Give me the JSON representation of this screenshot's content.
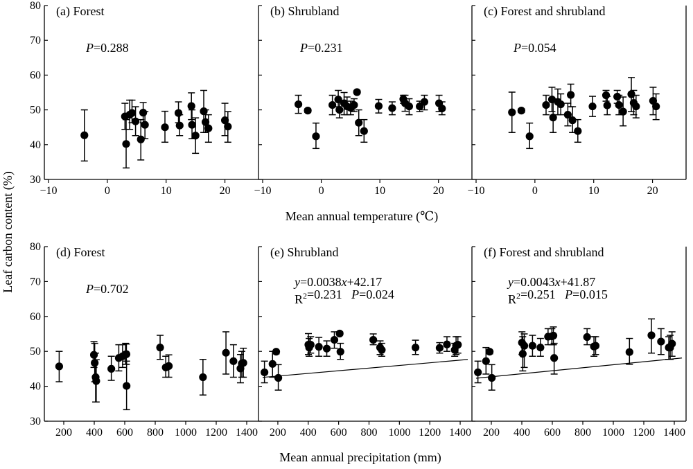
{
  "figure": {
    "ylabel": "Leaf carbon content (%)",
    "row_xlabels": [
      "Mean annual temperature (℃)",
      "Mean annual precipitation (mm)"
    ]
  },
  "chart_data": [
    {
      "type": "scatter",
      "panel": "(a) Forest",
      "row": 0,
      "col": 0,
      "stat_lines": [
        [
          {
            "t": "P",
            "i": true
          },
          {
            "t": "=0.288"
          }
        ]
      ],
      "xlim": [
        -10,
        25
      ],
      "ylim": [
        30,
        80
      ],
      "xticks": [
        -10,
        0,
        10,
        20
      ],
      "yticks": [
        30,
        40,
        50,
        60,
        70,
        80
      ],
      "show_xticklabels": true,
      "show_yticklabels": true,
      "fit": null,
      "points": [
        {
          "x": -3.9,
          "y": 42.7,
          "lo": 35.3,
          "hi": 50.0
        },
        {
          "x": 3.0,
          "y": 48.1,
          "lo": 44.4,
          "hi": 51.9
        },
        {
          "x": 3.2,
          "y": 40.2,
          "lo": 33.3,
          "hi": 47.2
        },
        {
          "x": 3.8,
          "y": 48.6,
          "lo": 44.4,
          "hi": 52.8
        },
        {
          "x": 4.2,
          "y": 49.1,
          "lo": 46.3,
          "hi": 52.8
        },
        {
          "x": 4.8,
          "y": 46.7,
          "lo": 42.6,
          "hi": 50.9
        },
        {
          "x": 5.7,
          "y": 41.5,
          "lo": 35.6,
          "hi": 47.2
        },
        {
          "x": 6.1,
          "y": 49.2,
          "lo": 46.3,
          "hi": 52.1
        },
        {
          "x": 6.4,
          "y": 45.7,
          "lo": 41.7,
          "hi": 49.5
        },
        {
          "x": 9.8,
          "y": 45.0,
          "lo": 40.7,
          "hi": 49.6
        },
        {
          "x": 12.1,
          "y": 49.1,
          "lo": 46.3,
          "hi": 52.3
        },
        {
          "x": 12.3,
          "y": 45.5,
          "lo": 42.6,
          "hi": 48.6
        },
        {
          "x": 14.3,
          "y": 51.1,
          "lo": 47.2,
          "hi": 54.9
        },
        {
          "x": 14.4,
          "y": 45.7,
          "lo": 41.7,
          "hi": 50.0
        },
        {
          "x": 15.0,
          "y": 42.6,
          "lo": 37.5,
          "hi": 47.7
        },
        {
          "x": 16.4,
          "y": 49.6,
          "lo": 43.5,
          "hi": 55.6
        },
        {
          "x": 16.7,
          "y": 46.5,
          "lo": 43.5,
          "hi": 50.0
        },
        {
          "x": 17.2,
          "y": 44.7,
          "lo": 40.7,
          "hi": 48.6
        },
        {
          "x": 20.0,
          "y": 47.0,
          "lo": 42.6,
          "hi": 51.9
        },
        {
          "x": 20.5,
          "y": 45.2,
          "lo": 40.7,
          "hi": 49.5
        }
      ]
    },
    {
      "type": "scatter",
      "panel": "(b) Shrubland",
      "row": 0,
      "col": 1,
      "stat_lines": [
        [
          {
            "t": "P",
            "i": true
          },
          {
            "t": "=0.231"
          }
        ]
      ],
      "xlim": [
        -10,
        25
      ],
      "ylim": [
        30,
        80
      ],
      "xticks": [
        -10,
        0,
        10,
        20
      ],
      "yticks": [
        30,
        40,
        50,
        60,
        70,
        80
      ],
      "show_xticklabels": true,
      "show_yticklabels": false,
      "fit": null,
      "points": [
        {
          "x": -3.9,
          "y": 51.6,
          "lo": 49.0,
          "hi": 54.2
        },
        {
          "x": -2.3,
          "y": 49.8,
          "lo": 49.3,
          "hi": 50.3
        },
        {
          "x": -0.9,
          "y": 42.4,
          "lo": 38.9,
          "hi": 46.2
        },
        {
          "x": 1.9,
          "y": 51.4,
          "lo": 48.6,
          "hi": 54.2
        },
        {
          "x": 2.9,
          "y": 53.0,
          "lo": 50.9,
          "hi": 55.6
        },
        {
          "x": 3.1,
          "y": 50.0,
          "lo": 47.7,
          "hi": 52.5
        },
        {
          "x": 3.9,
          "y": 51.9,
          "lo": 48.6,
          "hi": 55.0
        },
        {
          "x": 4.4,
          "y": 51.0,
          "lo": 48.6,
          "hi": 53.7
        },
        {
          "x": 5.0,
          "y": 50.6,
          "lo": 48.6,
          "hi": 52.5
        },
        {
          "x": 5.6,
          "y": 51.4,
          "lo": 49.5,
          "hi": 53.2
        },
        {
          "x": 6.1,
          "y": 55.1,
          "lo": 54.7,
          "hi": 55.6
        },
        {
          "x": 6.4,
          "y": 46.3,
          "lo": 42.6,
          "hi": 50.0
        },
        {
          "x": 7.3,
          "y": 43.9,
          "lo": 40.7,
          "hi": 47.2
        },
        {
          "x": 9.8,
          "y": 51.1,
          "lo": 49.1,
          "hi": 53.0
        },
        {
          "x": 12.1,
          "y": 50.5,
          "lo": 48.6,
          "hi": 52.3
        },
        {
          "x": 14.0,
          "y": 53.1,
          "lo": 51.9,
          "hi": 54.2
        },
        {
          "x": 14.3,
          "y": 51.9,
          "lo": 49.6,
          "hi": 54.2
        },
        {
          "x": 15.0,
          "y": 51.0,
          "lo": 48.6,
          "hi": 53.2
        },
        {
          "x": 16.8,
          "y": 51.0,
          "lo": 49.5,
          "hi": 52.5
        },
        {
          "x": 17.6,
          "y": 52.3,
          "lo": 50.0,
          "hi": 54.2
        },
        {
          "x": 20.1,
          "y": 51.9,
          "lo": 49.5,
          "hi": 54.2
        },
        {
          "x": 20.6,
          "y": 50.4,
          "lo": 48.6,
          "hi": 52.3
        }
      ]
    },
    {
      "type": "scatter",
      "panel": "(c) Forest and shrubland",
      "row": 0,
      "col": 2,
      "stat_lines": [
        [
          {
            "t": "P",
            "i": true
          },
          {
            "t": "=0.054"
          }
        ]
      ],
      "xlim": [
        -10,
        25
      ],
      "ylim": [
        30,
        80
      ],
      "xticks": [
        -10,
        0,
        10,
        20
      ],
      "yticks": [
        30,
        40,
        50,
        60,
        70,
        80
      ],
      "show_xticklabels": true,
      "show_yticklabels": false,
      "fit": null,
      "points": [
        {
          "x": -3.9,
          "y": 49.3,
          "lo": 43.5,
          "hi": 55.1
        },
        {
          "x": -2.3,
          "y": 49.8,
          "lo": 49.3,
          "hi": 50.3
        },
        {
          "x": -0.9,
          "y": 42.4,
          "lo": 38.9,
          "hi": 46.2
        },
        {
          "x": 1.9,
          "y": 51.4,
          "lo": 48.6,
          "hi": 54.2
        },
        {
          "x": 2.9,
          "y": 53.0,
          "lo": 49.5,
          "hi": 56.5
        },
        {
          "x": 3.1,
          "y": 47.8,
          "lo": 43.5,
          "hi": 52.3
        },
        {
          "x": 3.9,
          "y": 52.3,
          "lo": 48.6,
          "hi": 56.0
        },
        {
          "x": 4.4,
          "y": 51.6,
          "lo": 48.6,
          "hi": 54.6
        },
        {
          "x": 5.6,
          "y": 48.6,
          "lo": 45.4,
          "hi": 51.9
        },
        {
          "x": 6.1,
          "y": 54.3,
          "lo": 50.9,
          "hi": 57.4
        },
        {
          "x": 6.4,
          "y": 47.0,
          "lo": 43.5,
          "hi": 50.9
        },
        {
          "x": 7.3,
          "y": 43.9,
          "lo": 40.7,
          "hi": 47.2
        },
        {
          "x": 9.8,
          "y": 51.0,
          "lo": 48.1,
          "hi": 53.9
        },
        {
          "x": 12.1,
          "y": 54.2,
          "lo": 52.5,
          "hi": 55.6
        },
        {
          "x": 12.3,
          "y": 51.3,
          "lo": 48.6,
          "hi": 53.9
        },
        {
          "x": 14.0,
          "y": 53.8,
          "lo": 51.9,
          "hi": 55.6
        },
        {
          "x": 14.3,
          "y": 51.4,
          "lo": 48.6,
          "hi": 54.2
        },
        {
          "x": 15.0,
          "y": 49.5,
          "lo": 45.4,
          "hi": 53.7
        },
        {
          "x": 16.4,
          "y": 54.5,
          "lo": 49.5,
          "hi": 59.3
        },
        {
          "x": 16.8,
          "y": 52.0,
          "lo": 48.6,
          "hi": 55.6
        },
        {
          "x": 17.2,
          "y": 51.0,
          "lo": 47.7,
          "hi": 54.2
        },
        {
          "x": 20.1,
          "y": 52.6,
          "lo": 48.6,
          "hi": 56.5
        },
        {
          "x": 20.6,
          "y": 51.0,
          "lo": 47.2,
          "hi": 54.6
        }
      ]
    },
    {
      "type": "scatter",
      "panel": "(d) Forest",
      "row": 1,
      "col": 0,
      "stat_lines": [
        [
          {
            "t": "P",
            "i": true
          },
          {
            "t": "=0.702"
          }
        ]
      ],
      "xlim": [
        100,
        1450
      ],
      "ylim": [
        30,
        80
      ],
      "xticks": [
        200,
        400,
        600,
        800,
        1000,
        1200,
        1400
      ],
      "yticks": [
        30,
        40,
        50,
        60,
        70,
        80
      ],
      "show_xticklabels": true,
      "show_yticklabels": true,
      "fit": null,
      "points": [
        {
          "x": 170,
          "y": 45.7,
          "lo": 41.3,
          "hi": 50.0
        },
        {
          "x": 398,
          "y": 49.0,
          "lo": 45.4,
          "hi": 52.8
        },
        {
          "x": 403,
          "y": 46.7,
          "lo": 41.3,
          "hi": 52.3
        },
        {
          "x": 409,
          "y": 42.6,
          "lo": 35.5,
          "hi": 49.5
        },
        {
          "x": 413,
          "y": 41.5,
          "lo": 35.5,
          "hi": 47.6
        },
        {
          "x": 512,
          "y": 45.0,
          "lo": 41.7,
          "hi": 48.6
        },
        {
          "x": 561,
          "y": 48.1,
          "lo": 44.4,
          "hi": 51.9
        },
        {
          "x": 586,
          "y": 48.6,
          "lo": 45.4,
          "hi": 51.9
        },
        {
          "x": 605,
          "y": 49.1,
          "lo": 46.3,
          "hi": 52.3
        },
        {
          "x": 611,
          "y": 49.2,
          "lo": 46.3,
          "hi": 52.1
        },
        {
          "x": 612,
          "y": 40.1,
          "lo": 33.3,
          "hi": 47.2
        },
        {
          "x": 832,
          "y": 51.1,
          "lo": 47.7,
          "hi": 54.6
        },
        {
          "x": 869,
          "y": 45.4,
          "lo": 42.6,
          "hi": 48.6
        },
        {
          "x": 889,
          "y": 45.8,
          "lo": 42.6,
          "hi": 49.0
        },
        {
          "x": 1113,
          "y": 42.6,
          "lo": 37.5,
          "hi": 47.7
        },
        {
          "x": 1264,
          "y": 49.6,
          "lo": 43.5,
          "hi": 55.6
        },
        {
          "x": 1313,
          "y": 47.2,
          "lo": 42.6,
          "hi": 51.9
        },
        {
          "x": 1359,
          "y": 45.1,
          "lo": 41.0,
          "hi": 49.1
        },
        {
          "x": 1368,
          "y": 46.5,
          "lo": 42.6,
          "hi": 50.0
        },
        {
          "x": 1378,
          "y": 46.7,
          "lo": 42.6,
          "hi": 50.9
        }
      ]
    },
    {
      "type": "scatter",
      "panel": "(e) Shrubland",
      "row": 1,
      "col": 1,
      "stat_lines": [
        [
          {
            "t": "y",
            "i": true
          },
          {
            "t": "=0.0038"
          },
          {
            "t": "x",
            "i": true
          },
          {
            "t": "+42.17"
          }
        ],
        [
          {
            "t": "R"
          },
          {
            "t": "2",
            "s": true
          },
          {
            "t": "=0.231   "
          },
          {
            "t": "P",
            "i": true
          },
          {
            "t": "=0.024"
          }
        ]
      ],
      "xlim": [
        100,
        1450
      ],
      "ylim": [
        30,
        80
      ],
      "xticks": [
        200,
        400,
        600,
        800,
        1000,
        1200,
        1400
      ],
      "yticks": [
        30,
        40,
        50,
        60,
        70,
        80
      ],
      "show_xticklabels": true,
      "show_yticklabels": false,
      "fit": {
        "slope": 0.0038,
        "intercept": 42.17
      },
      "points": [
        {
          "x": 112,
          "y": 44.0,
          "lo": 41.0,
          "hi": 47.2
        },
        {
          "x": 165,
          "y": 46.4,
          "lo": 42.6,
          "hi": 50.0
        },
        {
          "x": 189,
          "y": 49.9,
          "lo": 49.3,
          "hi": 50.3
        },
        {
          "x": 203,
          "y": 42.4,
          "lo": 38.9,
          "hi": 46.2
        },
        {
          "x": 401,
          "y": 51.9,
          "lo": 49.1,
          "hi": 55.1
        },
        {
          "x": 406,
          "y": 51.1,
          "lo": 48.6,
          "hi": 53.7
        },
        {
          "x": 416,
          "y": 51.9,
          "lo": 49.5,
          "hi": 54.2
        },
        {
          "x": 470,
          "y": 51.3,
          "lo": 48.6,
          "hi": 54.0
        },
        {
          "x": 522,
          "y": 50.8,
          "lo": 48.6,
          "hi": 53.0
        },
        {
          "x": 572,
          "y": 53.3,
          "lo": 50.9,
          "hi": 55.6
        },
        {
          "x": 607,
          "y": 55.1,
          "lo": 54.7,
          "hi": 55.6
        },
        {
          "x": 612,
          "y": 49.9,
          "lo": 47.7,
          "hi": 52.3
        },
        {
          "x": 828,
          "y": 53.3,
          "lo": 51.9,
          "hi": 55.0
        },
        {
          "x": 873,
          "y": 51.1,
          "lo": 49.1,
          "hi": 53.0
        },
        {
          "x": 884,
          "y": 50.4,
          "lo": 48.6,
          "hi": 52.3
        },
        {
          "x": 1106,
          "y": 51.1,
          "lo": 49.1,
          "hi": 53.2
        },
        {
          "x": 1265,
          "y": 51.0,
          "lo": 49.5,
          "hi": 52.5
        },
        {
          "x": 1313,
          "y": 52.0,
          "lo": 50.0,
          "hi": 54.2
        },
        {
          "x": 1364,
          "y": 50.4,
          "lo": 48.6,
          "hi": 52.3
        },
        {
          "x": 1373,
          "y": 51.6,
          "lo": 49.1,
          "hi": 54.2
        },
        {
          "x": 1385,
          "y": 51.9,
          "lo": 49.5,
          "hi": 54.2
        }
      ]
    },
    {
      "type": "scatter",
      "panel": "(f) Forest and shrubland",
      "row": 1,
      "col": 2,
      "stat_lines": [
        [
          {
            "t": "y",
            "i": true
          },
          {
            "t": "=0.0043"
          },
          {
            "t": "x",
            "i": true
          },
          {
            "t": "+41.87"
          }
        ],
        [
          {
            "t": "R"
          },
          {
            "t": "2",
            "s": true
          },
          {
            "t": "=0.251   "
          },
          {
            "t": "P",
            "i": true
          },
          {
            "t": "=0.015"
          }
        ]
      ],
      "xlim": [
        100,
        1450
      ],
      "ylim": [
        30,
        80
      ],
      "xticks": [
        200,
        400,
        600,
        800,
        1000,
        1200,
        1400
      ],
      "yticks": [
        30,
        40,
        50,
        60,
        70,
        80
      ],
      "show_xticklabels": true,
      "show_yticklabels": false,
      "fit": {
        "slope": 0.0043,
        "intercept": 41.87
      },
      "points": [
        {
          "x": 112,
          "y": 44.0,
          "lo": 41.0,
          "hi": 47.2
        },
        {
          "x": 165,
          "y": 47.2,
          "lo": 43.5,
          "hi": 51.1
        },
        {
          "x": 189,
          "y": 49.9,
          "lo": 49.3,
          "hi": 50.3
        },
        {
          "x": 203,
          "y": 42.4,
          "lo": 38.9,
          "hi": 46.2
        },
        {
          "x": 401,
          "y": 52.5,
          "lo": 49.1,
          "hi": 55.6
        },
        {
          "x": 406,
          "y": 49.3,
          "lo": 44.4,
          "hi": 54.2
        },
        {
          "x": 416,
          "y": 51.6,
          "lo": 45.4,
          "hi": 55.0
        },
        {
          "x": 470,
          "y": 51.6,
          "lo": 48.6,
          "hi": 54.6
        },
        {
          "x": 522,
          "y": 51.1,
          "lo": 48.6,
          "hi": 53.7
        },
        {
          "x": 572,
          "y": 54.2,
          "lo": 51.9,
          "hi": 56.5
        },
        {
          "x": 597,
          "y": 54.3,
          "lo": 51.9,
          "hi": 56.5
        },
        {
          "x": 607,
          "y": 54.5,
          "lo": 51.9,
          "hi": 57.0
        },
        {
          "x": 612,
          "y": 48.1,
          "lo": 43.5,
          "hi": 52.3
        },
        {
          "x": 828,
          "y": 54.1,
          "lo": 51.9,
          "hi": 56.5
        },
        {
          "x": 873,
          "y": 51.4,
          "lo": 48.6,
          "hi": 54.2
        },
        {
          "x": 884,
          "y": 51.6,
          "lo": 49.1,
          "hi": 54.2
        },
        {
          "x": 1106,
          "y": 49.8,
          "lo": 46.3,
          "hi": 53.7
        },
        {
          "x": 1250,
          "y": 54.6,
          "lo": 49.5,
          "hi": 59.3
        },
        {
          "x": 1313,
          "y": 52.8,
          "lo": 49.1,
          "hi": 56.5
        },
        {
          "x": 1364,
          "y": 51.1,
          "lo": 47.7,
          "hi": 54.2
        },
        {
          "x": 1373,
          "y": 51.1,
          "lo": 47.7,
          "hi": 54.6
        },
        {
          "x": 1385,
          "y": 52.2,
          "lo": 48.6,
          "hi": 55.6
        }
      ]
    }
  ]
}
